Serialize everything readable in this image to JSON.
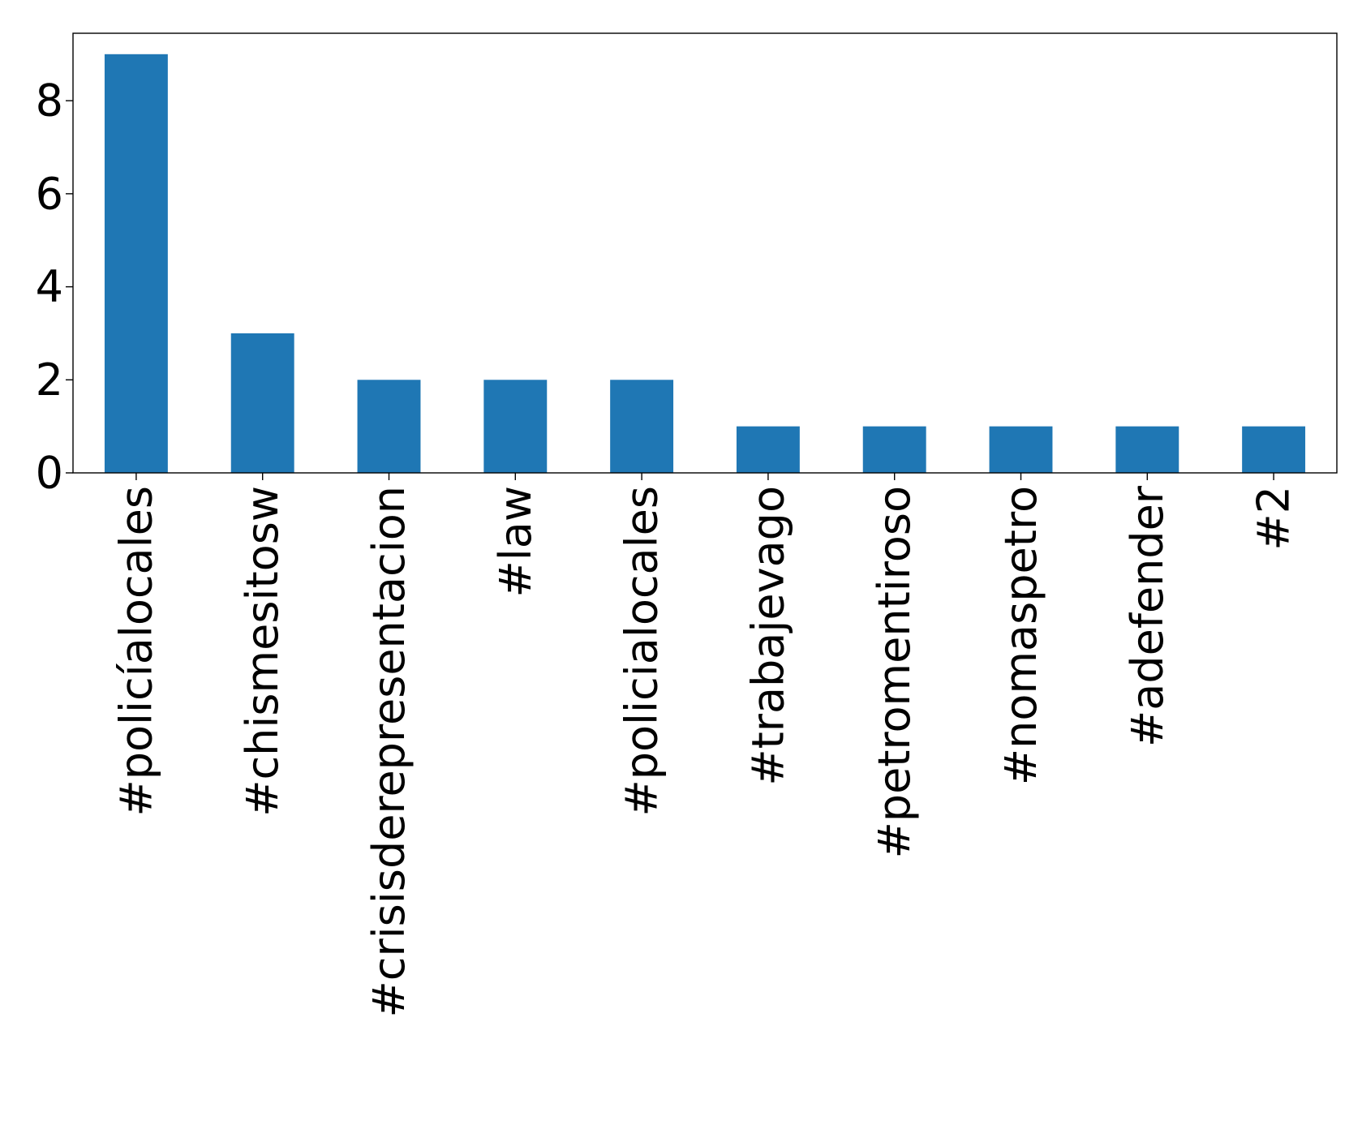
{
  "chart_data": {
    "type": "bar",
    "title": "",
    "xlabel": "",
    "ylabel": "",
    "categories": [
      "#policíalocales",
      "#chismesitosw",
      "#crisisderepresentacion",
      "#law",
      "#policialocales",
      "#trabajevago",
      "#petromentiroso",
      "#nomaspetro",
      "#adefender",
      "#2"
    ],
    "values": [
      9,
      3,
      2,
      2,
      2,
      1,
      1,
      1,
      1,
      1
    ],
    "ylim": [
      0,
      9.45
    ],
    "yticks": [
      0,
      2,
      4,
      6,
      8
    ],
    "grid": false,
    "legend": "none",
    "bar_color": "#1f77b4"
  }
}
